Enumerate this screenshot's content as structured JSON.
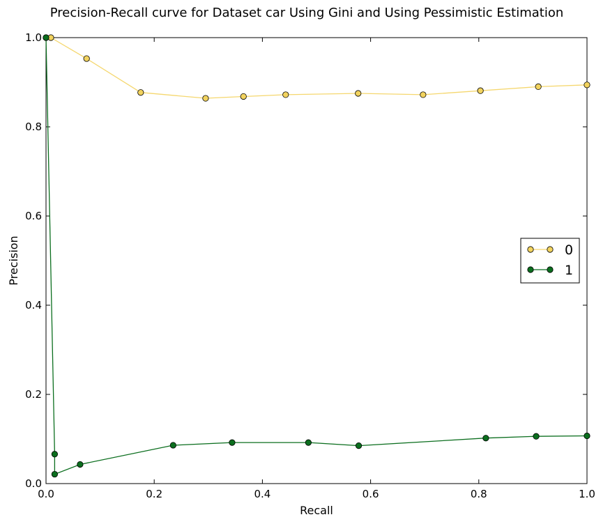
{
  "chart_data": {
    "type": "line",
    "title": "Precision-Recall curve for Dataset car Using Gini and Using Pessimistic Estimation",
    "xlabel": "Recall",
    "ylabel": "Precision",
    "xlim": [
      0.0,
      1.0
    ],
    "ylim": [
      0.0,
      1.0
    ],
    "x_ticks": [
      "0.0",
      "0.2",
      "0.4",
      "0.6",
      "0.8",
      "1.0"
    ],
    "y_ticks": [
      "0.0",
      "0.2",
      "0.4",
      "0.6",
      "0.8",
      "1.0"
    ],
    "grid": false,
    "legend_position": "center-right",
    "series": [
      {
        "name": "0",
        "color": "#f2d35e",
        "line_color": "#f5d76e",
        "x": [
          0.0,
          0.009,
          0.075,
          0.175,
          0.295,
          0.365,
          0.443,
          0.577,
          0.697,
          0.803,
          0.91,
          1.0
        ],
        "y": [
          1.0,
          1.0,
          0.953,
          0.877,
          0.864,
          0.868,
          0.872,
          0.875,
          0.872,
          0.881,
          0.89,
          0.894
        ]
      },
      {
        "name": "1",
        "color": "#0b6e1e",
        "line_color": "#0b6e1e",
        "x": [
          0.0,
          0.016,
          0.016,
          0.063,
          0.235,
          0.344,
          0.485,
          0.578,
          0.813,
          0.906,
          1.0
        ],
        "y": [
          1.0,
          0.066,
          0.021,
          0.043,
          0.086,
          0.092,
          0.092,
          0.085,
          0.102,
          0.106,
          0.107
        ]
      }
    ]
  }
}
